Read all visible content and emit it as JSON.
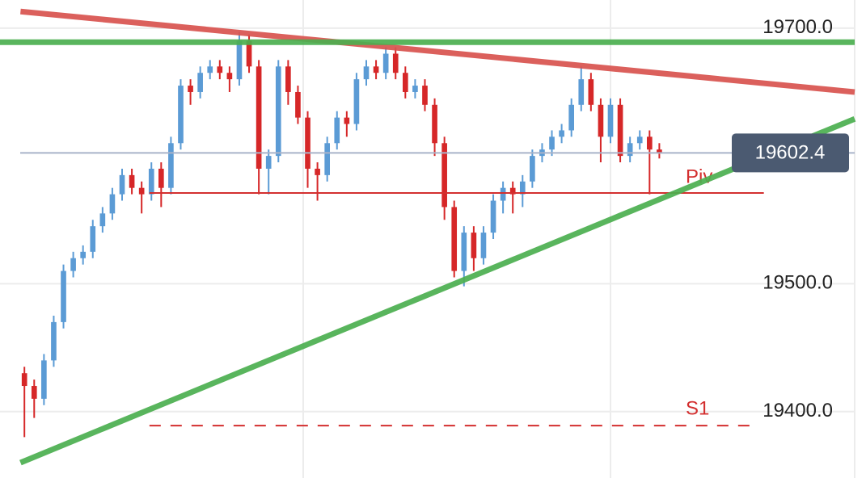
{
  "chart_data": {
    "type": "candlestick",
    "ylim": [
      19348,
      19722
    ],
    "xlim": [
      -2.5,
      85
    ],
    "yticks": [
      {
        "value": 19700,
        "label": "19700.0"
      },
      {
        "value": 19500,
        "label": "19500.0"
      },
      {
        "value": 19400,
        "label": "19400.0"
      }
    ],
    "up_color": "#5b9bd5",
    "down_color": "#d62728",
    "open": [
      19430,
      19420,
      19410,
      19440,
      19470,
      19510,
      19520,
      19525,
      19545,
      19555,
      19570,
      19585,
      19575,
      19570,
      19590,
      19575,
      19610,
      19655,
      19650,
      19665,
      19670,
      19665,
      19660,
      19690,
      19670,
      19590,
      19600,
      19670,
      19650,
      19630,
      19590,
      19585,
      19610,
      19630,
      19625,
      19660,
      19670,
      19665,
      19680,
      19665,
      19650,
      19655,
      19640,
      19610,
      19560,
      19510,
      19540,
      19520,
      19540,
      19565,
      19575,
      19570,
      19580,
      19600,
      19605,
      19615,
      19620,
      19640,
      19660,
      19640,
      19615,
      19640,
      19600,
      19610,
      19615,
      19605
    ],
    "high": [
      19435,
      19425,
      19445,
      19475,
      19515,
      19525,
      19530,
      19550,
      19560,
      19575,
      19590,
      19590,
      19580,
      19595,
      19595,
      19615,
      19660,
      19660,
      19670,
      19675,
      19675,
      19670,
      19697,
      19695,
      19675,
      19605,
      19675,
      19675,
      19655,
      19635,
      19595,
      19615,
      19635,
      19635,
      19665,
      19675,
      19675,
      19685,
      19685,
      19670,
      19660,
      19660,
      19645,
      19615,
      19565,
      19545,
      19545,
      19545,
      19570,
      19580,
      19580,
      19585,
      19605,
      19610,
      19620,
      19625,
      19645,
      19670,
      19665,
      19645,
      19645,
      19645,
      19615,
      19620,
      19620,
      19610
    ],
    "low": [
      19380,
      19395,
      19405,
      19435,
      19465,
      19505,
      19515,
      19520,
      19540,
      19550,
      19565,
      19570,
      19555,
      19565,
      19560,
      19570,
      19605,
      19640,
      19645,
      19660,
      19660,
      19650,
      19655,
      19665,
      19570,
      19570,
      19595,
      19640,
      19625,
      19575,
      19565,
      19580,
      19605,
      19615,
      19620,
      19655,
      19660,
      19660,
      19660,
      19645,
      19645,
      19635,
      19600,
      19550,
      19505,
      19498,
      19510,
      19515,
      19535,
      19555,
      19555,
      19560,
      19575,
      19595,
      19600,
      19610,
      19615,
      19635,
      19635,
      19595,
      19610,
      19595,
      19595,
      19605,
      19570,
      19598
    ],
    "close": [
      19420,
      19410,
      19440,
      19470,
      19510,
      19520,
      19525,
      19545,
      19555,
      19570,
      19585,
      19575,
      19570,
      19590,
      19575,
      19610,
      19655,
      19650,
      19665,
      19670,
      19665,
      19660,
      19690,
      19670,
      19590,
      19600,
      19670,
      19650,
      19630,
      19590,
      19585,
      19610,
      19630,
      19625,
      19660,
      19670,
      19665,
      19680,
      19665,
      19650,
      19655,
      19640,
      19610,
      19560,
      19510,
      19540,
      19520,
      19540,
      19565,
      19575,
      19570,
      19580,
      19600,
      19605,
      19615,
      19620,
      19640,
      19660,
      19640,
      19615,
      19640,
      19600,
      19610,
      19615,
      19605,
      19602.4
    ],
    "current_price": 19602.4,
    "trendlines": [
      {
        "color": "#d9534f",
        "x": [
          -0.4,
          85
        ],
        "y": [
          19713,
          19650
        ]
      },
      {
        "color": "#4caf50",
        "x": [
          -2.5,
          85
        ],
        "y": [
          19689,
          19689
        ]
      },
      {
        "color": "#4caf50",
        "x": [
          -0.4,
          85
        ],
        "y": [
          19360,
          19629
        ]
      }
    ],
    "levels": [
      {
        "label": "Piv",
        "value": 19571,
        "x": [
          12.8,
          75.7
        ],
        "color": "#d32f2f",
        "dashed": false
      },
      {
        "label": "S1",
        "value": 19389,
        "x": [
          12.8,
          74.5
        ],
        "color": "#d32f2f",
        "dashed": true
      }
    ]
  }
}
